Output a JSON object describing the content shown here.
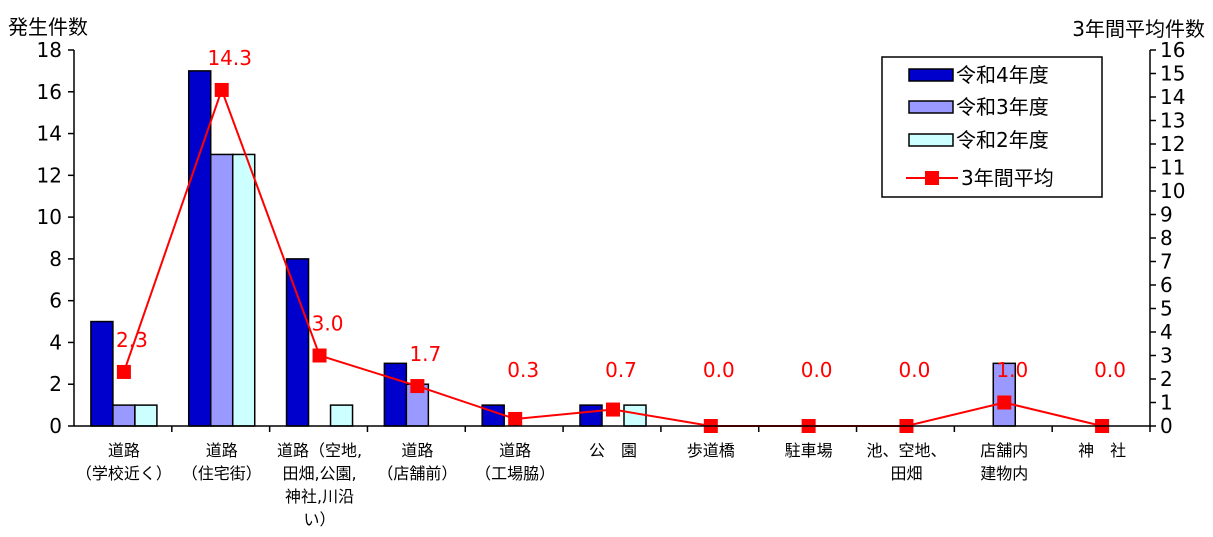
{
  "chart_data": {
    "type": "bar",
    "title": "",
    "ylabel_left": "発生件数",
    "ylabel_right": "3年間平均件数",
    "ylim_left": [
      0,
      18
    ],
    "yticks_left": [
      0,
      2,
      4,
      6,
      8,
      10,
      12,
      14,
      16,
      18
    ],
    "ylim_right": [
      0,
      16
    ],
    "yticks_right": [
      0,
      1,
      2,
      3,
      4,
      5,
      6,
      7,
      8,
      9,
      10,
      11,
      12,
      13,
      14,
      15,
      16
    ],
    "categories": [
      [
        "道路",
        "（学校近く）"
      ],
      [
        "道路",
        "（住宅街）"
      ],
      [
        "道路（空地,",
        "田畑,公園,",
        "神社,川沿",
        "い）"
      ],
      [
        "道路",
        "（店舗前）"
      ],
      [
        "道路",
        "（工場脇）"
      ],
      [
        "公　園"
      ],
      [
        "歩道橋"
      ],
      [
        "駐車場"
      ],
      [
        "池、空地、",
        "田畑"
      ],
      [
        "店舗内",
        "建物内"
      ],
      [
        "神　社"
      ]
    ],
    "series": [
      {
        "name": "令和4年度",
        "axis": "left",
        "values": [
          5,
          17,
          8,
          3,
          1,
          1,
          0,
          0,
          0,
          0,
          0
        ],
        "color": "#0000cc"
      },
      {
        "name": "令和3年度",
        "axis": "left",
        "values": [
          1,
          13,
          0,
          2,
          0,
          0,
          0,
          0,
          0,
          3,
          0
        ],
        "color": "#9999ff"
      },
      {
        "name": "令和2年度",
        "axis": "left",
        "values": [
          1,
          13,
          1,
          0,
          0,
          1,
          0,
          0,
          0,
          0,
          0
        ],
        "color": "#ccffff"
      }
    ],
    "line_series": {
      "name": "3年間平均",
      "axis": "right",
      "values": [
        2.3,
        14.3,
        3.0,
        1.7,
        0.3,
        0.7,
        0.0,
        0.0,
        0.0,
        1.0,
        0.0
      ],
      "labels": [
        "2.3",
        "14.3",
        "3.0",
        "1.7",
        "0.3",
        "0.7",
        "0.0",
        "0.0",
        "0.0",
        "1.0",
        "0.0"
      ],
      "color": "#ff0000"
    },
    "legend_position": "top-right",
    "grid": false
  }
}
